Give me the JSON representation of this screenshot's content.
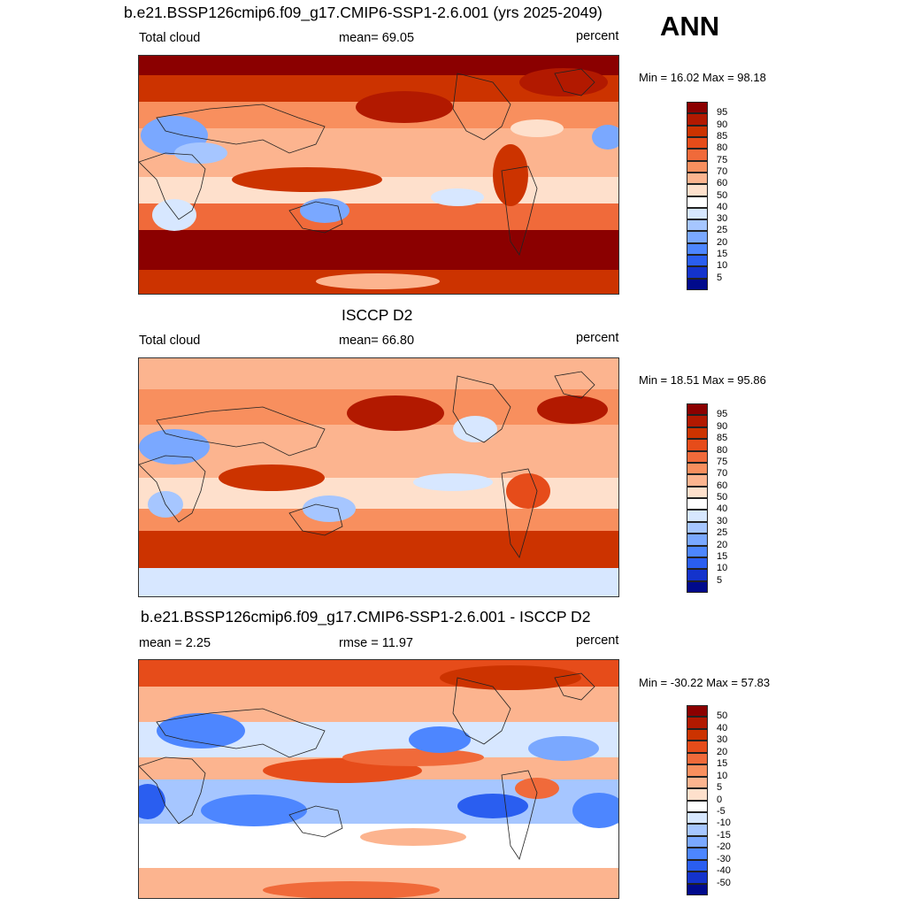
{
  "header": {
    "title": "b.e21.BSSP126cmip6.f09_g17.CMIP6-SSP1-2.6.001 (yrs 2025-2049)",
    "season": "ANN"
  },
  "panels": [
    {
      "title": "",
      "left_label": "Total cloud",
      "center_label": "mean=  69.05",
      "right_label": "percent",
      "minmax": "Min =  16.02 Max =  98.18",
      "levels": [
        "95",
        "90",
        "85",
        "80",
        "75",
        "70",
        "60",
        "50",
        "40",
        "30",
        "25",
        "20",
        "15",
        "10",
        "5"
      ],
      "colors": [
        "#8b0000",
        "#b21900",
        "#cc3300",
        "#e64c1a",
        "#f06a3a",
        "#f88f5e",
        "#fcb48f",
        "#fee0cc",
        "#ffffff",
        "#d7e7ff",
        "#a6c6ff",
        "#7aa8ff",
        "#4d86ff",
        "#2a5ef0",
        "#1433cc",
        "#000a8c"
      ]
    },
    {
      "title": "ISCCP D2",
      "left_label": "Total cloud",
      "center_label": "mean=  66.80",
      "right_label": "percent",
      "minmax": "Min =  18.51 Max =  95.86",
      "levels": [
        "95",
        "90",
        "85",
        "80",
        "75",
        "70",
        "60",
        "50",
        "40",
        "30",
        "25",
        "20",
        "15",
        "10",
        "5"
      ],
      "colors": [
        "#8b0000",
        "#b21900",
        "#cc3300",
        "#e64c1a",
        "#f06a3a",
        "#f88f5e",
        "#fcb48f",
        "#fee0cc",
        "#ffffff",
        "#d7e7ff",
        "#a6c6ff",
        "#7aa8ff",
        "#4d86ff",
        "#2a5ef0",
        "#1433cc",
        "#000a8c"
      ]
    },
    {
      "title": "b.e21.BSSP126cmip6.f09_g17.CMIP6-SSP1-2.6.001 - ISCCP D2",
      "left_label": "mean =   2.25",
      "center_label": "rmse =  11.97",
      "right_label": "percent",
      "minmax": "Min = -30.22 Max =  57.83",
      "levels": [
        "50",
        "40",
        "30",
        "20",
        "15",
        "10",
        "5",
        "0",
        "-5",
        "-10",
        "-15",
        "-20",
        "-30",
        "-40",
        "-50"
      ],
      "colors": [
        "#8b0000",
        "#b21900",
        "#cc3300",
        "#e64c1a",
        "#f06a3a",
        "#f88f5e",
        "#fcb48f",
        "#fee0cc",
        "#ffffff",
        "#d7e7ff",
        "#a6c6ff",
        "#7aa8ff",
        "#4d86ff",
        "#2a5ef0",
        "#1433cc",
        "#000a8c"
      ]
    }
  ]
}
